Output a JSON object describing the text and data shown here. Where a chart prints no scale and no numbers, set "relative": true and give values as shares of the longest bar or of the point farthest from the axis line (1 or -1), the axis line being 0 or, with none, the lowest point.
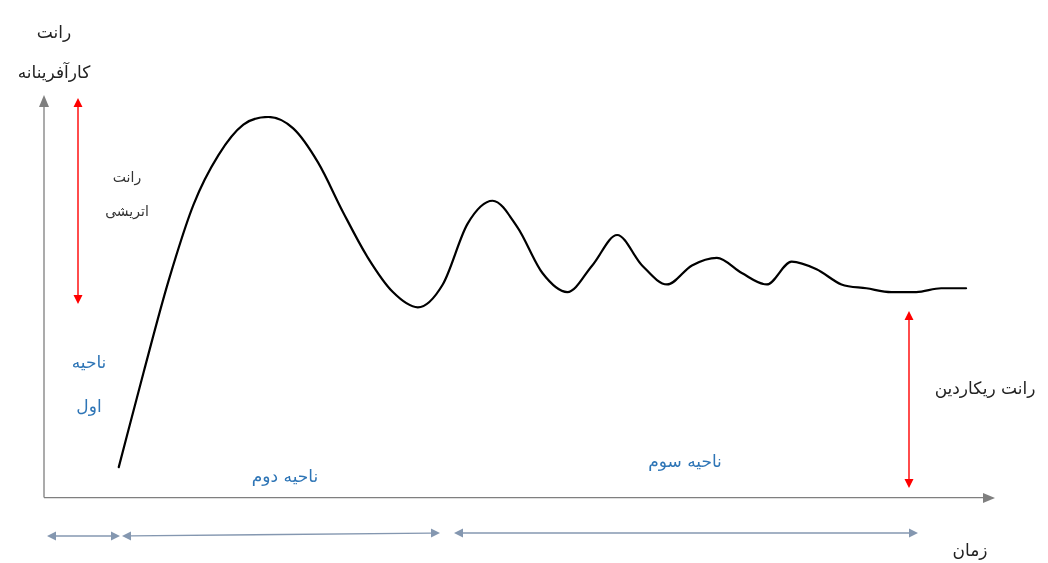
{
  "chart_data": {
    "type": "line",
    "relative": true,
    "ylabel": "رانت کارآفرینانه",
    "xlabel": "زمان",
    "categories": [
      null,
      null,
      null,
      null,
      null,
      null,
      null,
      null,
      null,
      null,
      null,
      null,
      null,
      null,
      null,
      null,
      null,
      null,
      null,
      null,
      null,
      null,
      null,
      null,
      null,
      null,
      null,
      null,
      null,
      null,
      null,
      null,
      null,
      null,
      null,
      null,
      null,
      null,
      null
    ],
    "series": [
      {
        "color": "#000000",
        "values": [
          null,
          null,
          null,
          0.08,
          0.33,
          0.57,
          0.77,
          0.9,
          0.98,
          1,
          0.97,
          0.88,
          0.75,
          0.63,
          0.54,
          0.5,
          0.56,
          0.72,
          0.78,
          0.71,
          0.59,
          0.54,
          0.61,
          0.69,
          0.61,
          0.56,
          0.61,
          0.63,
          0.59,
          0.56,
          0.62,
          0.6,
          0.56,
          0.55,
          0.54,
          0.54,
          0.55,
          0.55,
          null
        ]
      }
    ],
    "annotations": [
      "رانت اتریشی",
      "ناحیه اول",
      "ناحیه دوم",
      "ناحیه سوم",
      "رانت ریکاردین"
    ],
    "marker": "none",
    "line_style": "solid",
    "legend": false,
    "grid": false
  }
}
